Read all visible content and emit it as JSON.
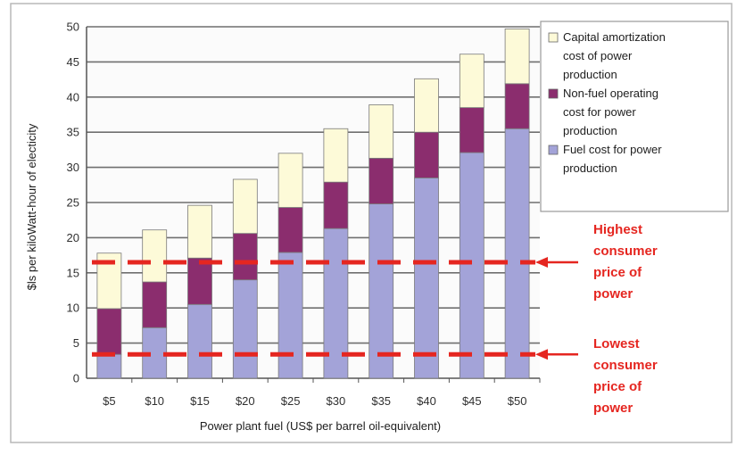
{
  "chart_data": {
    "type": "bar",
    "stacked": true,
    "xlabel": "Power plant fuel (US$ per barrel oil-equivalent)",
    "ylabel": "$ls per kiloWatt-hour of electicity",
    "ylim": [
      0,
      50
    ],
    "y_ticks": [
      0,
      5,
      10,
      15,
      20,
      25,
      30,
      35,
      40,
      45,
      50
    ],
    "grid": true,
    "legend_position": "top-right",
    "categories": [
      "$5",
      "$10",
      "$15",
      "$20",
      "$25",
      "$30",
      "$35",
      "$40",
      "$45",
      "$50"
    ],
    "series": [
      {
        "name": "Fuel cost for power production",
        "color": "#a3a3d8",
        "values": [
          3.4,
          7.2,
          10.5,
          14.0,
          17.9,
          21.3,
          24.8,
          28.5,
          32.1,
          35.5
        ]
      },
      {
        "name": "Non-fuel operating cost for power production",
        "color": "#8b2d6e",
        "values": [
          6.5,
          6.5,
          6.6,
          6.6,
          6.4,
          6.6,
          6.5,
          6.5,
          6.4,
          6.4
        ]
      },
      {
        "name": "Capital amortization cost of power production",
        "color": "#fdfad8",
        "values": [
          7.9,
          7.4,
          7.5,
          7.7,
          7.7,
          7.6,
          7.6,
          7.6,
          7.6,
          7.8
        ]
      }
    ],
    "reference_lines": [
      {
        "value": 16.5,
        "label": [
          "Highest",
          "consumer",
          "price of",
          "power"
        ],
        "color": "#e52620"
      },
      {
        "value": 3.4,
        "label": [
          "Lowest",
          "consumer",
          "price of",
          "power"
        ],
        "color": "#e52620"
      }
    ]
  },
  "legend": {
    "items": [
      {
        "lines": [
          "Capital amortization",
          "cost of power",
          "production"
        ],
        "color": "#fdfad8"
      },
      {
        "lines": [
          "Non-fuel operating",
          "cost for power",
          "production"
        ],
        "color": "#8b2d6e"
      },
      {
        "lines": [
          "Fuel cost for power",
          "production"
        ],
        "color": "#a3a3d8"
      }
    ]
  }
}
